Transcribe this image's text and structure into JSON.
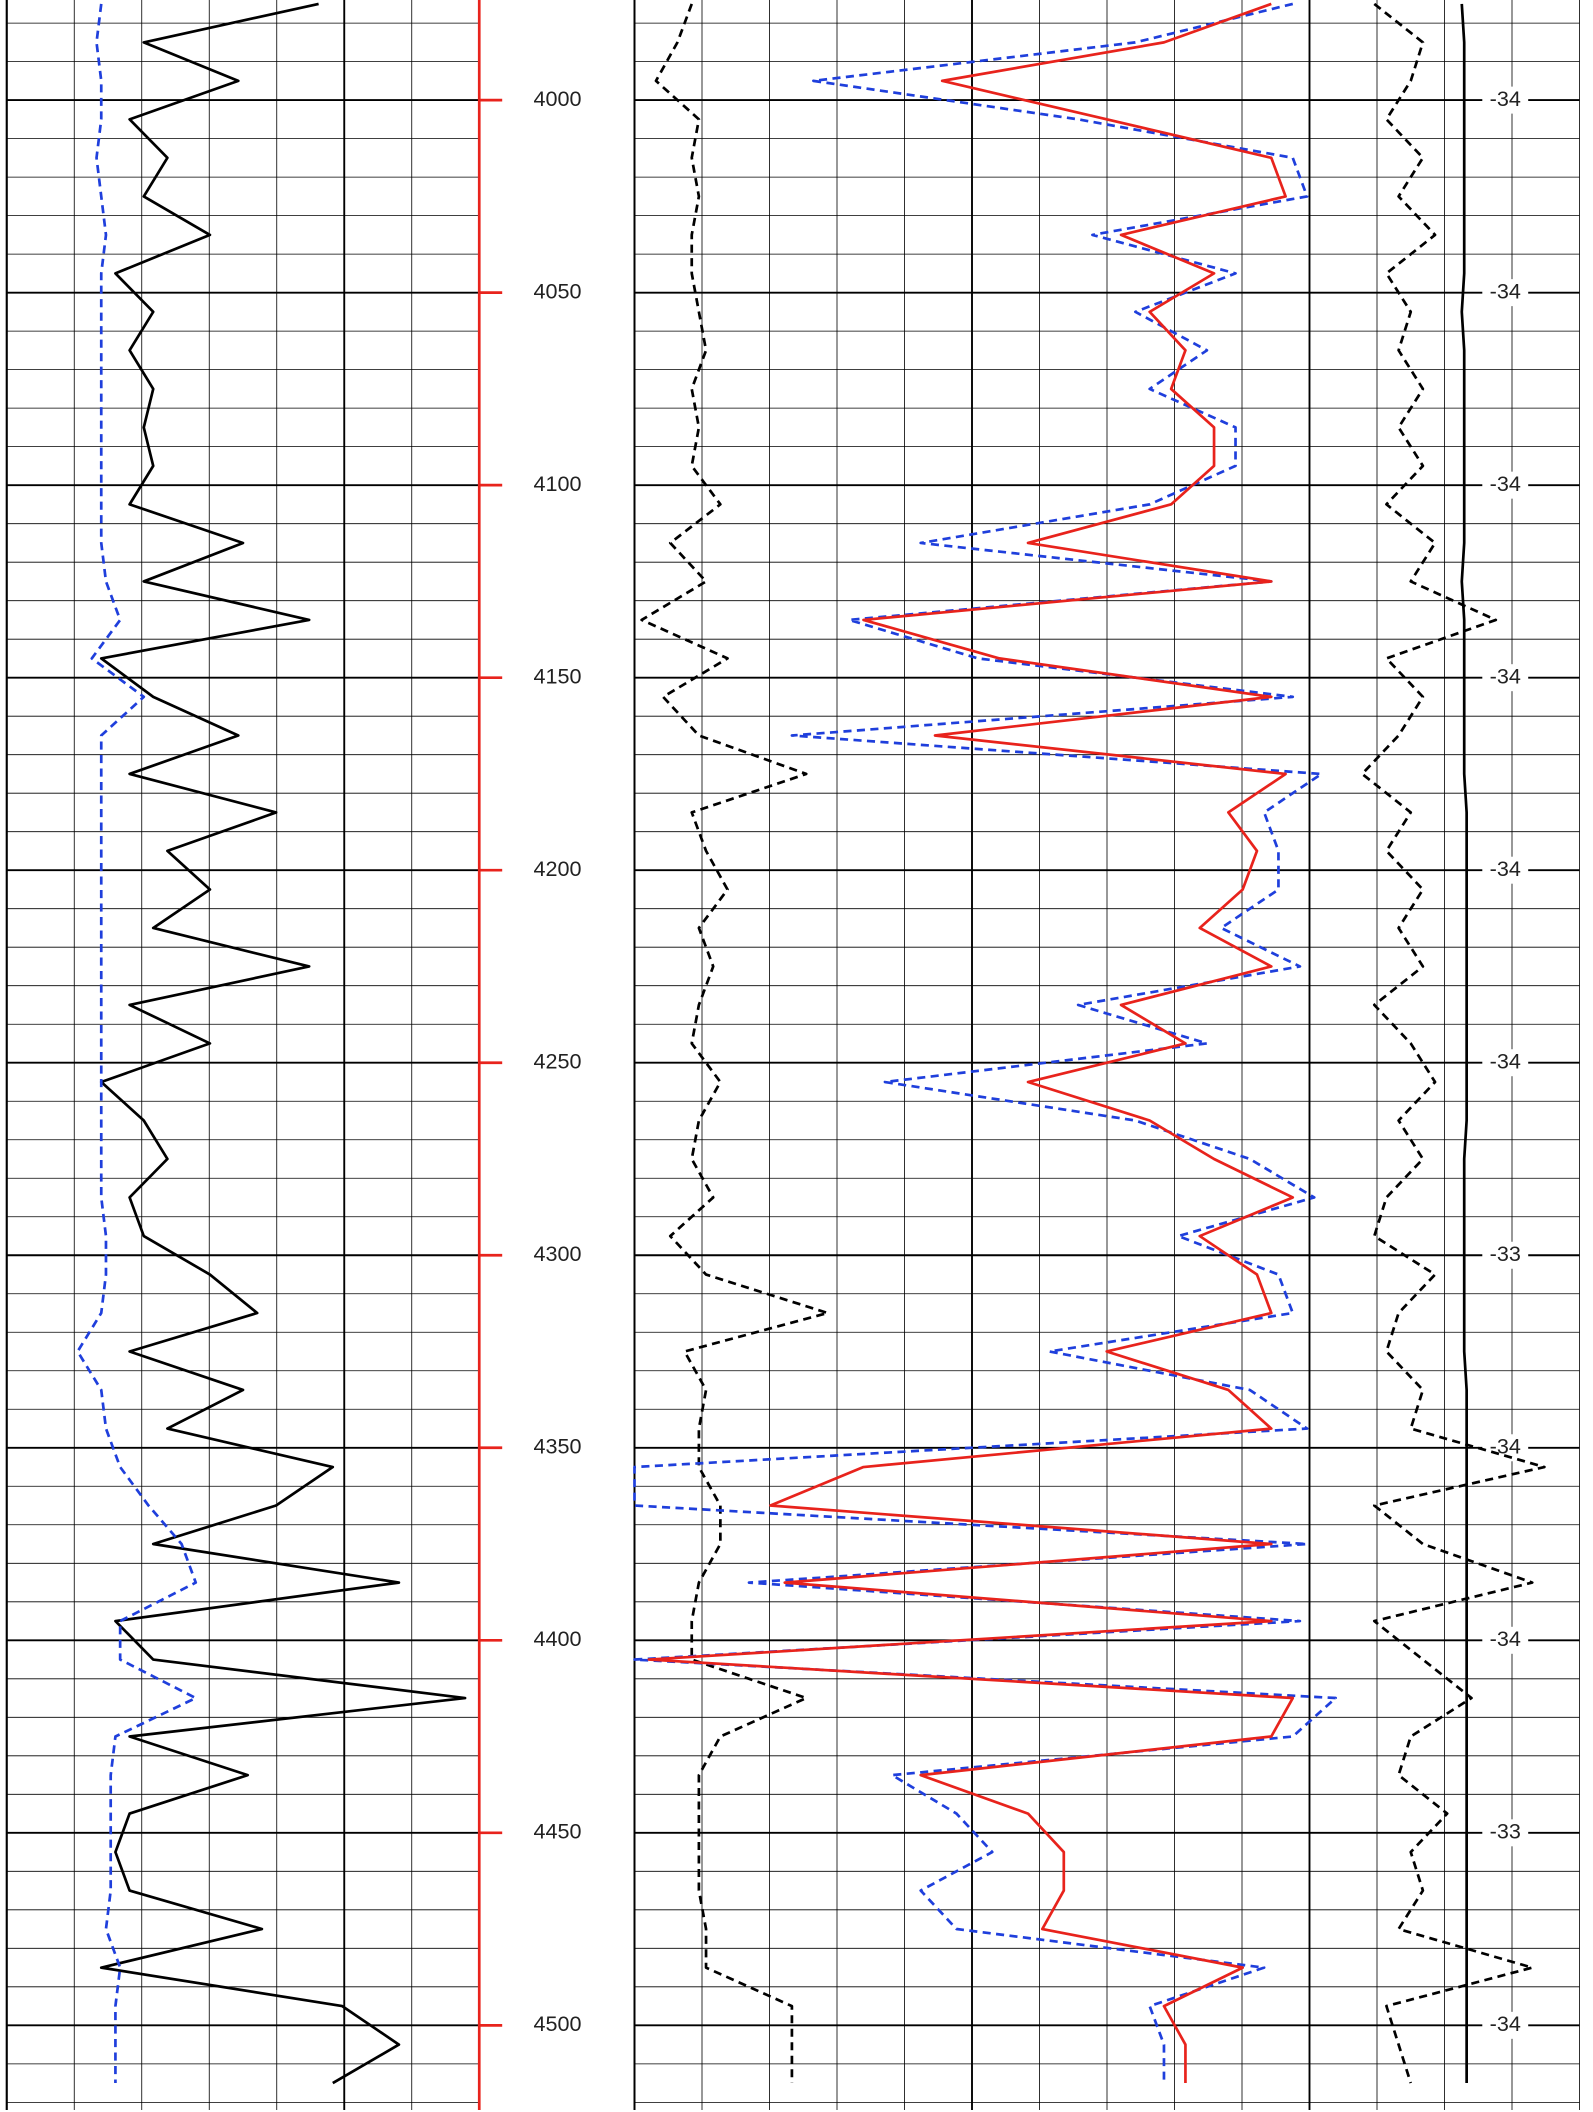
{
  "chart_data": {
    "type": "well-log",
    "depth": [
      3975,
      3985,
      3995,
      4005,
      4015,
      4025,
      4035,
      4045,
      4055,
      4065,
      4075,
      4085,
      4095,
      4105,
      4115,
      4125,
      4135,
      4145,
      4155,
      4165,
      4175,
      4185,
      4195,
      4205,
      4215,
      4225,
      4235,
      4245,
      4255,
      4265,
      4275,
      4285,
      4295,
      4305,
      4315,
      4325,
      4335,
      4345,
      4355,
      4365,
      4375,
      4385,
      4395,
      4405,
      4415,
      4425,
      4435,
      4445,
      4455,
      4465,
      4475,
      4485,
      4495,
      4505,
      4515
    ],
    "ylim": [
      3974,
      4522
    ],
    "yticks": [
      4000,
      4050,
      4100,
      4150,
      4200,
      4250,
      4300,
      4350,
      4400,
      4450,
      4500
    ],
    "track_labels": [
      -34,
      -34,
      -34,
      -34,
      -34,
      -34,
      -33,
      -34,
      -34,
      -33,
      -34
    ],
    "grid": true,
    "tracks": [
      {
        "xlim": [
          0,
          100
        ],
        "series": [
          {
            "color": "#000000",
            "dashed": false,
            "values": [
              66,
              29,
              49,
              26,
              34,
              29,
              43,
              23,
              31,
              26,
              31,
              29,
              31,
              26,
              50,
              29,
              64,
              20,
              31,
              49,
              26,
              57,
              34,
              43,
              31,
              64,
              26,
              43,
              20,
              29,
              34,
              26,
              29,
              43,
              53,
              26,
              50,
              34,
              69,
              57,
              31,
              83,
              23,
              31,
              97,
              26,
              51,
              26,
              23,
              26,
              54,
              20,
              71,
              83,
              69
            ]
          },
          {
            "color": "#1f3fdc",
            "dashed": true,
            "values": [
              20,
              19,
              20,
              20,
              19,
              20,
              21,
              20,
              20,
              20,
              20,
              20,
              20,
              20,
              20,
              21,
              24,
              18,
              29,
              20,
              20,
              20,
              20,
              20,
              20,
              20,
              20,
              20,
              20,
              20,
              20,
              20,
              21,
              21,
              20,
              15,
              20,
              21,
              24,
              30,
              37,
              40,
              24,
              24,
              40,
              23,
              22,
              22,
              22,
              22,
              21,
              24,
              23,
              23,
              23
            ]
          }
        ]
      },
      {
        "xlim": [
          0,
          100
        ],
        "series": [
          {
            "color": "#000000",
            "dashed": true,
            "values": [
              8,
              6,
              3,
              9,
              8,
              9,
              8,
              8,
              9,
              10,
              8,
              9,
              8,
              12,
              5,
              10,
              1,
              13,
              4,
              9,
              24,
              8,
              10,
              13,
              9,
              11,
              9,
              8,
              12,
              9,
              8,
              11,
              5,
              10,
              27,
              7,
              10,
              9,
              9,
              12,
              12,
              9,
              8,
              8,
              24,
              12,
              9,
              9,
              9,
              9,
              10,
              10,
              22,
              22,
              22
            ]
          },
          {
            "color": "#1f3fdc",
            "dashed": true,
            "values": [
              92,
              70,
              25,
              62,
              92,
              94,
              64,
              84,
              70,
              80,
              72,
              84,
              84,
              72,
              40,
              89,
              30,
              48,
              92,
              22,
              96,
              88,
              90,
              90,
              82,
              93,
              62,
              80,
              35,
              70,
              86,
              95,
              76,
              90,
              92,
              58,
              86,
              94,
              0,
              0,
              94,
              16,
              93,
              0,
              98,
              92,
              36,
              45,
              50,
              40,
              45,
              88,
              72,
              74,
              74
            ]
          },
          {
            "color": "#e8231c",
            "dashed": false,
            "values": [
              89,
              74,
              43,
              66,
              89,
              91,
              68,
              81,
              72,
              77,
              75,
              81,
              81,
              75,
              55,
              89,
              32,
              51,
              89,
              42,
              91,
              83,
              87,
              85,
              79,
              89,
              68,
              77,
              55,
              72,
              81,
              92,
              79,
              87,
              89,
              66,
              83,
              89,
              32,
              19,
              89,
              21,
              89,
              2,
              92,
              89,
              40,
              55,
              60,
              60,
              57,
              85,
              74,
              77,
              77
            ]
          }
        ]
      },
      {
        "xlim": [
          0,
          100
        ],
        "series": [
          {
            "color": "#000000",
            "dashed": true,
            "values": [
              10,
              30,
              25,
              15,
              30,
              20,
              35,
              15,
              25,
              20,
              30,
              20,
              30,
              15,
              35,
              25,
              60,
              15,
              30,
              20,
              5,
              25,
              15,
              30,
              20,
              30,
              10,
              25,
              35,
              20,
              30,
              15,
              10,
              35,
              20,
              15,
              30,
              25,
              80,
              10,
              30,
              75,
              10,
              30,
              50,
              25,
              20,
              40,
              25,
              30,
              20,
              75,
              15,
              20,
              25
            ]
          },
          {
            "color": "#000000",
            "dashed": false,
            "values": [
              46,
              47,
              47,
              47,
              47,
              47,
              47,
              47,
              46,
              47,
              47,
              47,
              47,
              47,
              47,
              46,
              47,
              47,
              47,
              47,
              47,
              48,
              48,
              48,
              48,
              48,
              48,
              48,
              48,
              48,
              47,
              47,
              47,
              47,
              47,
              47,
              48,
              48,
              48,
              48,
              48,
              48,
              48,
              48,
              48,
              48,
              48,
              48,
              48,
              48,
              48,
              48,
              48,
              48,
              48
            ]
          }
        ]
      }
    ]
  }
}
